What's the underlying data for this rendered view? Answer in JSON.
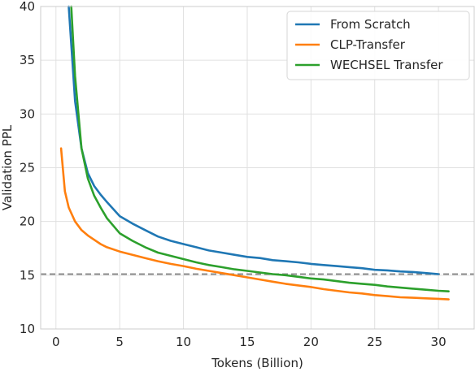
{
  "chart_data": {
    "type": "line",
    "xlabel": "Tokens (Billion)",
    "ylabel": "Validation PPL",
    "xlim": [
      -1.2,
      32.8
    ],
    "ylim": [
      10,
      40
    ],
    "x_ticks": [
      0,
      5,
      10,
      15,
      20,
      25,
      30
    ],
    "y_ticks": [
      10,
      15,
      20,
      25,
      30,
      35,
      40
    ],
    "grid": true,
    "legend_position": "top-right",
    "reference_line": {
      "y": 15.1,
      "style": "dashed",
      "color": "#8c8c8c"
    },
    "series": [
      {
        "name": "From Scratch",
        "color": "#1f77b4",
        "x": [
          1.0,
          1.5,
          2.0,
          2.5,
          3.0,
          3.5,
          4.0,
          5.0,
          6.0,
          7.0,
          8.0,
          9.0,
          10.0,
          11.0,
          12.0,
          13.0,
          14.0,
          15.0,
          16.0,
          17.0,
          18.0,
          19.0,
          20.0,
          21.0,
          22.0,
          23.0,
          24.0,
          25.0,
          26.0,
          27.0,
          28.0,
          29.0,
          30.0
        ],
        "y": [
          40.0,
          31.2,
          26.8,
          24.5,
          23.3,
          22.5,
          21.8,
          20.5,
          19.8,
          19.2,
          18.6,
          18.2,
          17.9,
          17.6,
          17.3,
          17.1,
          16.9,
          16.7,
          16.6,
          16.4,
          16.3,
          16.2,
          16.05,
          15.95,
          15.85,
          15.75,
          15.65,
          15.5,
          15.45,
          15.35,
          15.3,
          15.2,
          15.1
        ]
      },
      {
        "name": "CLP-Transfer",
        "color": "#ff7f0e",
        "x": [
          0.4,
          0.7,
          1.0,
          1.5,
          2.0,
          2.5,
          3.0,
          3.5,
          4.0,
          5.0,
          6.0,
          7.0,
          8.0,
          9.0,
          10.0,
          11.0,
          12.0,
          13.0,
          14.0,
          15.0,
          16.0,
          17.0,
          18.0,
          19.0,
          20.0,
          21.0,
          22.0,
          23.0,
          24.0,
          25.0,
          26.0,
          27.0,
          28.0,
          29.0,
          30.0,
          30.8
        ],
        "y": [
          26.8,
          22.8,
          21.3,
          20.0,
          19.2,
          18.7,
          18.3,
          17.9,
          17.6,
          17.2,
          16.9,
          16.6,
          16.3,
          16.05,
          15.85,
          15.6,
          15.4,
          15.2,
          15.0,
          14.8,
          14.6,
          14.4,
          14.2,
          14.05,
          13.9,
          13.7,
          13.55,
          13.4,
          13.3,
          13.15,
          13.05,
          12.95,
          12.9,
          12.85,
          12.8,
          12.75
        ]
      },
      {
        "name": "WECHSEL Transfer",
        "color": "#2ca02c",
        "x": [
          1.2,
          1.5,
          2.0,
          2.5,
          3.0,
          3.5,
          4.0,
          5.0,
          6.0,
          7.0,
          8.0,
          9.0,
          10.0,
          11.0,
          12.0,
          13.0,
          14.0,
          15.0,
          16.0,
          17.0,
          18.0,
          19.0,
          20.0,
          21.0,
          22.0,
          23.0,
          24.0,
          25.0,
          26.0,
          27.0,
          28.0,
          29.0,
          30.0,
          30.8
        ],
        "y": [
          40.0,
          33.5,
          26.8,
          24.0,
          22.4,
          21.3,
          20.3,
          18.9,
          18.2,
          17.6,
          17.1,
          16.8,
          16.5,
          16.2,
          15.95,
          15.75,
          15.55,
          15.4,
          15.25,
          15.1,
          15.0,
          14.85,
          14.7,
          14.6,
          14.45,
          14.3,
          14.2,
          14.1,
          13.95,
          13.85,
          13.75,
          13.65,
          13.55,
          13.5
        ]
      }
    ]
  }
}
